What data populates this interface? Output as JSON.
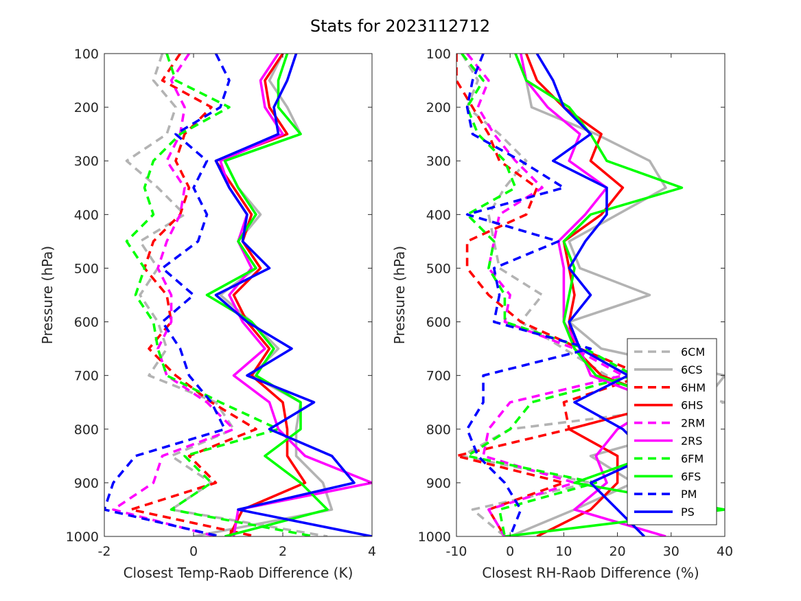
{
  "figure": {
    "title": "Stats for 2023112712"
  },
  "legend": {
    "placement": "lower-right of right panel",
    "entries": [
      {
        "label": "6CM",
        "color": "#b3b3b3",
        "dash": true
      },
      {
        "label": "6CS",
        "color": "#b3b3b3",
        "dash": false
      },
      {
        "label": "6HM",
        "color": "#ff0000",
        "dash": true
      },
      {
        "label": "6HS",
        "color": "#ff0000",
        "dash": false
      },
      {
        "label": "2RM",
        "color": "#ff00ff",
        "dash": true
      },
      {
        "label": "2RS",
        "color": "#ff00ff",
        "dash": false
      },
      {
        "label": "6FM",
        "color": "#00ff00",
        "dash": true
      },
      {
        "label": "6FS",
        "color": "#00ff00",
        "dash": false
      },
      {
        "label": "PM",
        "color": "#0000ff",
        "dash": true
      },
      {
        "label": "PS",
        "color": "#0000ff",
        "dash": false
      }
    ]
  },
  "chart_data": [
    {
      "type": "line",
      "xlabel": "Closest Temp-Raob Difference (K)",
      "ylabel": "Pressure (hPa)",
      "xlim": [
        -2,
        4
      ],
      "ylim": [
        100,
        1000
      ],
      "y_reversed": true,
      "xticks": [
        "-2",
        "0",
        "2",
        "4"
      ],
      "yticks": [
        "100",
        "200",
        "300",
        "400",
        "500",
        "600",
        "700",
        "800",
        "900",
        "1000"
      ],
      "grid": false,
      "pressure": [
        100,
        150,
        200,
        250,
        300,
        350,
        400,
        450,
        500,
        550,
        600,
        650,
        700,
        750,
        800,
        850,
        900,
        950,
        1000
      ],
      "series": [
        {
          "name": "6CM",
          "values": [
            -0.7,
            -0.9,
            -0.4,
            -0.6,
            -1.5,
            -0.8,
            -0.2,
            -1.2,
            -0.8,
            -1.2,
            -0.8,
            -0.6,
            -1.0,
            0.5,
            0.9,
            -0.5,
            0.4,
            -0.5,
            3.0
          ]
        },
        {
          "name": "6CS",
          "values": [
            2.0,
            1.7,
            2.1,
            2.4,
            0.7,
            1.0,
            1.5,
            1.0,
            1.4,
            0.6,
            1.3,
            1.9,
            1.3,
            2.4,
            2.3,
            2.3,
            2.9,
            3.1,
            0.0
          ]
        },
        {
          "name": "6HM",
          "values": [
            -0.3,
            -0.7,
            0.4,
            -0.2,
            -0.4,
            -0.1,
            -0.3,
            -0.9,
            -1.1,
            -0.6,
            -0.5,
            -1.0,
            -0.4,
            0.4,
            1.4,
            -0.1,
            0.5,
            -1.4,
            1.4
          ]
        },
        {
          "name": "6HS",
          "values": [
            2.0,
            1.6,
            1.7,
            2.1,
            0.5,
            0.9,
            1.3,
            1.1,
            1.5,
            0.9,
            1.2,
            1.7,
            1.3,
            2.0,
            2.1,
            2.1,
            2.5,
            1.1,
            0.8
          ]
        },
        {
          "name": "2RM",
          "values": [
            -0.1,
            -0.5,
            -0.2,
            -0.3,
            -0.6,
            -0.2,
            -0.3,
            -0.6,
            -0.8,
            -0.5,
            -0.5,
            -0.8,
            -0.6,
            0.3,
            0.9,
            -0.7,
            -0.9,
            -1.8,
            0.5
          ]
        },
        {
          "name": "2RS",
          "values": [
            1.9,
            1.5,
            1.6,
            2.0,
            0.6,
            0.8,
            1.2,
            1.0,
            1.3,
            0.8,
            1.1,
            1.6,
            0.9,
            1.7,
            1.9,
            2.5,
            4.0,
            1.0,
            0.9
          ]
        },
        {
          "name": "6FM",
          "values": [
            -0.6,
            -0.4,
            0.8,
            -0.3,
            -0.9,
            -1.1,
            -0.9,
            -1.5,
            -1.1,
            -1.3,
            -0.9,
            -0.8,
            -0.6,
            0.6,
            1.9,
            -0.2,
            0.4,
            -0.5,
            2.7
          ]
        },
        {
          "name": "6FS",
          "values": [
            2.1,
            1.9,
            1.9,
            2.4,
            0.7,
            1.0,
            1.4,
            1.0,
            1.4,
            0.3,
            1.3,
            1.8,
            1.4,
            2.4,
            2.4,
            1.6,
            2.4,
            3.0,
            0.7
          ]
        },
        {
          "name": "PM",
          "values": [
            0.5,
            0.8,
            0.6,
            -0.4,
            0.3,
            0.0,
            0.3,
            0.1,
            -0.7,
            0.0,
            -0.7,
            -0.3,
            -0.1,
            0.4,
            0.7,
            -1.3,
            -1.8,
            -2.0,
            0.6
          ]
        },
        {
          "name": "PS",
          "values": [
            2.3,
            2.1,
            1.8,
            1.9,
            0.5,
            0.8,
            1.2,
            1.1,
            1.7,
            0.5,
            1.2,
            2.2,
            1.2,
            2.7,
            1.7,
            3.1,
            3.6,
            1.0,
            4.0
          ]
        }
      ]
    },
    {
      "type": "line",
      "xlabel": "Closest RH-Raob Difference (%)",
      "ylabel": "Pressure (hPa)",
      "xlim": [
        -10,
        40
      ],
      "ylim": [
        100,
        1000
      ],
      "y_reversed": true,
      "xticks": [
        "-10",
        "0",
        "10",
        "20",
        "30",
        "40"
      ],
      "yticks": [
        "100",
        "200",
        "300",
        "400",
        "500",
        "600",
        "700",
        "800",
        "900",
        "1000"
      ],
      "grid": false,
      "pressure": [
        100,
        150,
        200,
        250,
        300,
        350,
        400,
        450,
        500,
        550,
        600,
        650,
        700,
        750,
        800,
        850,
        900,
        950,
        1000
      ],
      "series": [
        {
          "name": "6CM",
          "values": [
            -9.0,
            -6.0,
            -8.0,
            -2.0,
            3.0,
            -1.0,
            -4.0,
            -3.0,
            -2.0,
            6.0,
            2.0,
            10.0,
            18.0,
            40.0,
            0.0,
            -9.0,
            15.0,
            -7.0,
            -1.0
          ]
        },
        {
          "name": "6CS",
          "values": [
            1.0,
            3.0,
            4.0,
            16.0,
            26.0,
            29.0,
            20.0,
            11.0,
            13.0,
            26.0,
            11.0,
            17.0,
            40.0,
            36.0,
            33.0,
            15.0,
            23.0,
            12.0,
            0.0
          ]
        },
        {
          "name": "6HM",
          "values": [
            -10.0,
            -10.0,
            -7.0,
            -4.0,
            -2.0,
            5.0,
            3.0,
            -8.0,
            -8.0,
            -4.0,
            2.0,
            13.0,
            25.0,
            10.0,
            11.0,
            -10.0,
            10.0,
            -4.0,
            -1.0
          ]
        },
        {
          "name": "6HS",
          "values": [
            3.0,
            5.0,
            10.0,
            17.0,
            15.0,
            21.0,
            17.0,
            10.0,
            11.0,
            12.0,
            11.0,
            12.0,
            17.0,
            30.0,
            11.0,
            20.0,
            20.0,
            15.0,
            5.0
          ]
        },
        {
          "name": "2RM",
          "values": [
            -8.0,
            -4.0,
            -6.0,
            -3.0,
            1.0,
            6.0,
            -2.0,
            -3.0,
            -4.0,
            0.0,
            -1.0,
            12.0,
            21.0,
            0.0,
            -4.0,
            -5.0,
            12.0,
            -4.0,
            -1.0
          ]
        },
        {
          "name": "2RS",
          "values": [
            2.0,
            3.0,
            7.0,
            13.0,
            11.0,
            18.0,
            14.0,
            9.0,
            10.0,
            10.0,
            10.0,
            13.0,
            15.0,
            28.0,
            20.0,
            16.0,
            18.0,
            12.0,
            29.0
          ]
        },
        {
          "name": "6FM",
          "values": [
            -9.0,
            -5.0,
            -8.0,
            -6.0,
            -1.0,
            1.0,
            -8.0,
            -3.0,
            -4.0,
            -1.0,
            -1.0,
            14.0,
            23.0,
            4.0,
            0.0,
            -8.0,
            16.0,
            -2.0,
            -1.0
          ]
        },
        {
          "name": "6FS",
          "values": [
            1.0,
            3.0,
            11.0,
            15.0,
            18.0,
            32.0,
            15.0,
            10.0,
            12.0,
            11.0,
            10.0,
            12.0,
            16.0,
            31.0,
            30.0,
            26.0,
            12.0,
            40.0,
            -1.0
          ]
        },
        {
          "name": "PM",
          "values": [
            -5.0,
            -7.0,
            -8.0,
            -7.0,
            2.0,
            10.0,
            -8.0,
            9.0,
            -3.0,
            -2.0,
            -3.0,
            15.0,
            -5.0,
            -5.0,
            -8.0,
            -6.0,
            -1.0,
            2.0,
            0.0
          ]
        },
        {
          "name": "PS",
          "values": [
            5.0,
            8.0,
            10.0,
            15.0,
            8.0,
            18.0,
            18.0,
            14.0,
            11.0,
            15.0,
            11.0,
            13.0,
            22.0,
            12.0,
            21.0,
            26.0,
            15.0,
            20.0,
            25.0
          ]
        }
      ]
    }
  ]
}
